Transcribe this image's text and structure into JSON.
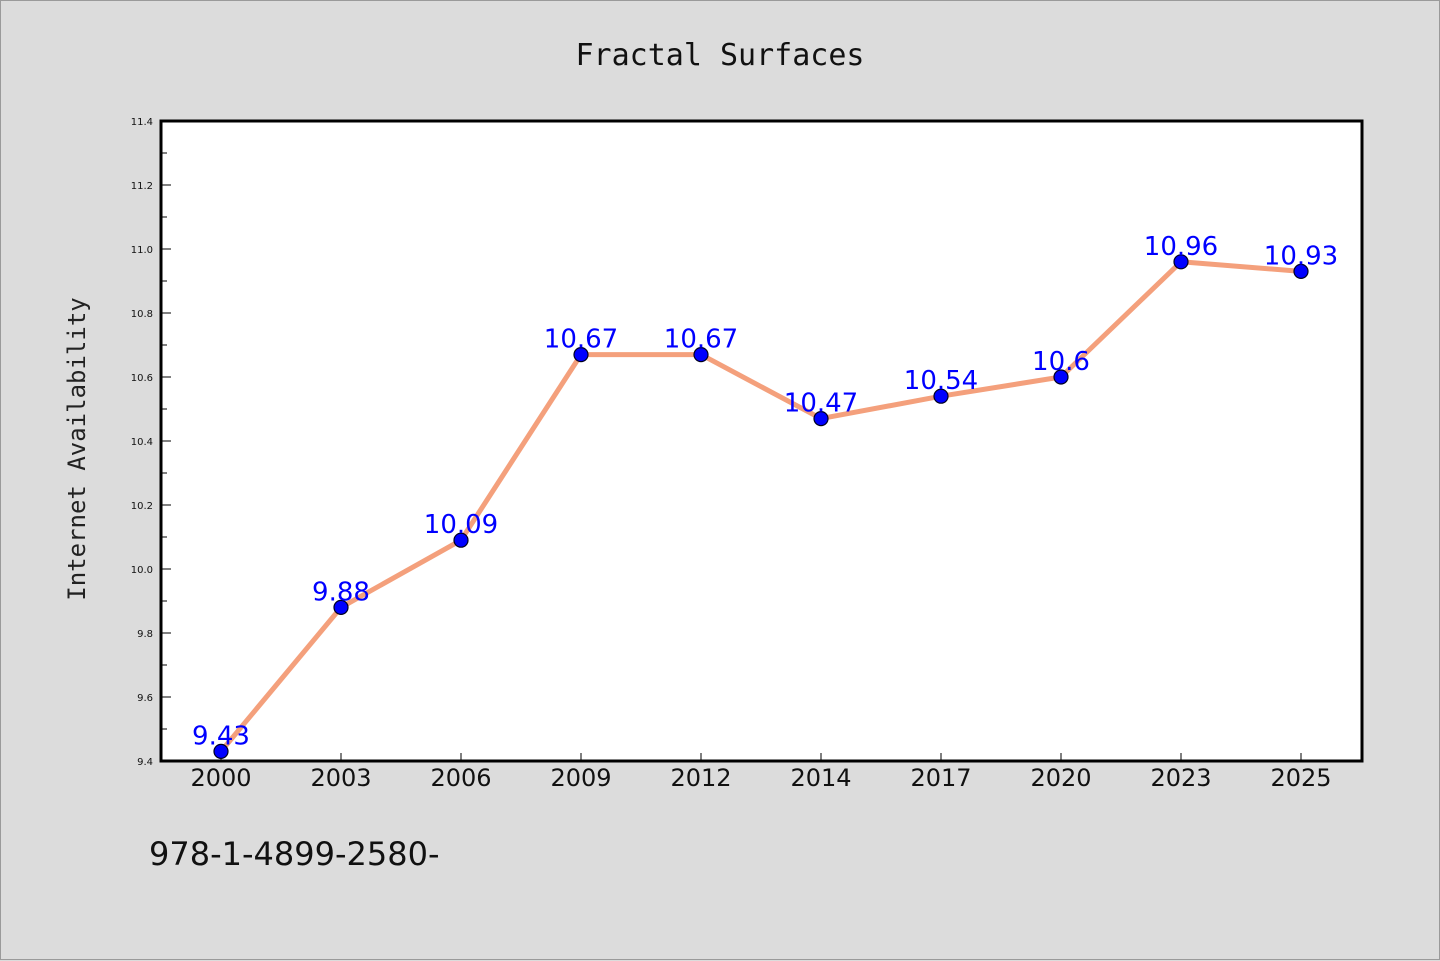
{
  "chart_data": {
    "type": "line",
    "title": "Fractal Surfaces",
    "xlabel": "",
    "ylabel": "Internet Availability",
    "categories": [
      "2000",
      "2003",
      "2006",
      "2009",
      "2012",
      "2014",
      "2017",
      "2020",
      "2023",
      "2025"
    ],
    "series": [
      {
        "values": [
          9.43,
          9.88,
          10.09,
          10.67,
          10.67,
          10.47,
          10.54,
          10.6,
          10.96,
          10.93
        ],
        "data_labels": [
          "9.43",
          "9.88",
          "10.09",
          "10.67",
          "10.67",
          "10.47",
          "10.54",
          "10.6",
          "10.96",
          "10.93"
        ],
        "line_color": "#f4a07c",
        "marker_color": "#0000ff"
      }
    ],
    "ylim": [
      9.4,
      11.4
    ],
    "yticks": [
      9.4,
      9.6,
      9.8,
      10.0,
      10.2,
      10.4,
      10.6,
      10.8,
      11.0,
      11.2,
      11.4
    ],
    "ytick_labels": [
      "9.4",
      "9.6",
      "9.8",
      "10.0",
      "10.2",
      "10.4",
      "10.6",
      "10.8",
      "11.0",
      "11.2",
      "11.4"
    ],
    "grid": false,
    "legend": "none"
  },
  "footer": {
    "isbn": "978-1-4899-2580-"
  },
  "colors": {
    "background": "#dcdcdc",
    "plot_area": "#ffffff",
    "data_label": "#0000ff"
  }
}
